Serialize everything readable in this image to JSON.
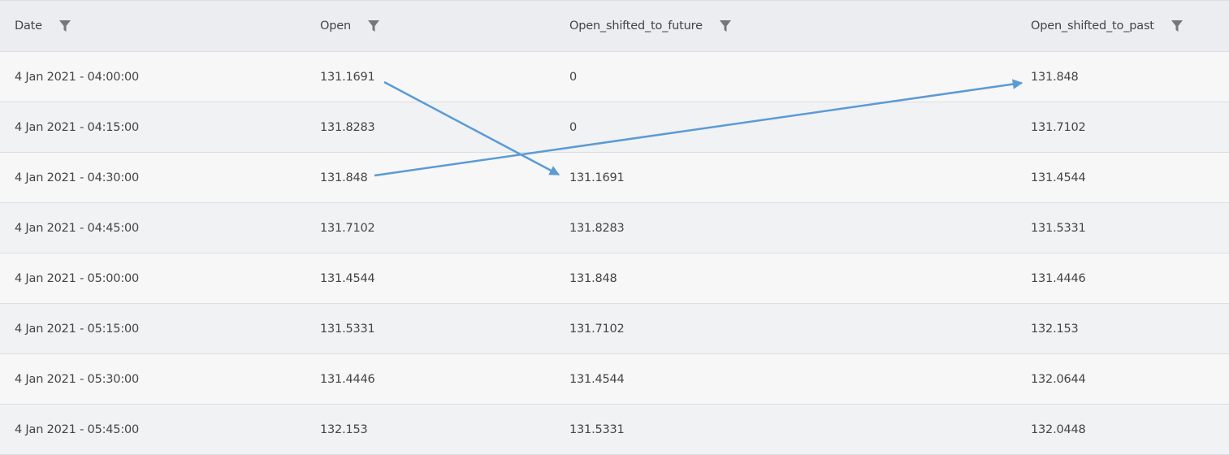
{
  "table": {
    "columns": [
      "Date",
      "Open",
      "Open_shifted_to_future",
      "Open_shifted_to_past"
    ],
    "rows": [
      [
        "4 Jan 2021 - 04:00:00",
        "131.1691",
        "0",
        "131.848"
      ],
      [
        "4 Jan 2021 - 04:15:00",
        "131.8283",
        "0",
        "131.7102"
      ],
      [
        "4 Jan 2021 - 04:30:00",
        "131.848",
        "131.1691",
        "131.4544"
      ],
      [
        "4 Jan 2021 - 04:45:00",
        "131.7102",
        "131.8283",
        "131.5331"
      ],
      [
        "4 Jan 2021 - 05:00:00",
        "131.4544",
        "131.848",
        "131.4446"
      ],
      [
        "4 Jan 2021 - 05:15:00",
        "131.5331",
        "131.7102",
        "132.153"
      ],
      [
        "4 Jan 2021 - 05:30:00",
        "131.4446",
        "131.4544",
        "132.0644"
      ],
      [
        "4 Jan 2021 - 05:45:00",
        "132.153",
        "131.5331",
        "132.0448"
      ]
    ]
  }
}
